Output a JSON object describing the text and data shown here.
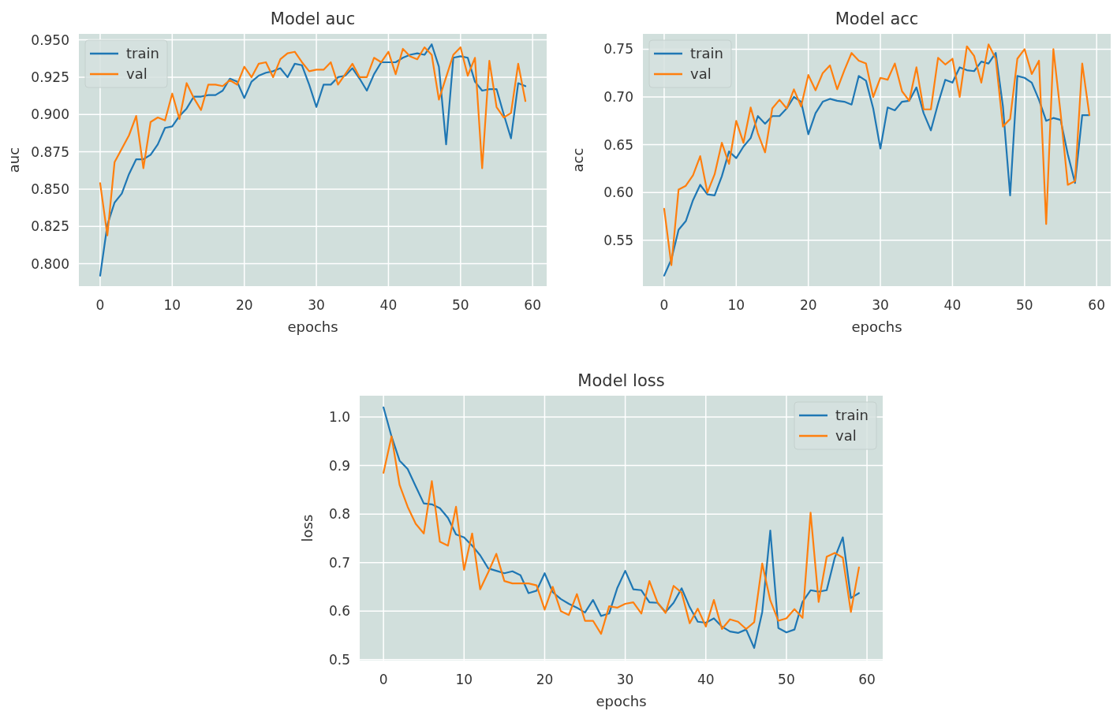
{
  "chart_data": [
    {
      "type": "line",
      "title": "Model auc",
      "xlabel": "epochs",
      "ylabel": "auc",
      "x": [
        0,
        1,
        2,
        3,
        4,
        5,
        6,
        7,
        8,
        9,
        10,
        11,
        12,
        13,
        14,
        15,
        16,
        17,
        18,
        19,
        20,
        21,
        22,
        23,
        24,
        25,
        26,
        27,
        28,
        29,
        30,
        31,
        32,
        33,
        34,
        35,
        36,
        37,
        38,
        39,
        40,
        41,
        42,
        43,
        44,
        45,
        46,
        47,
        48,
        49,
        50,
        51,
        52,
        53,
        54,
        55,
        56,
        57,
        58,
        59
      ],
      "xlim": [
        -2.95,
        61.95
      ],
      "xticks": [
        0,
        10,
        20,
        30,
        40,
        50,
        60
      ],
      "ylim": [
        0.785,
        0.954
      ],
      "yticks": [
        {
          "value": 0.8,
          "label": "0.800"
        },
        {
          "value": 0.825,
          "label": "0.825"
        },
        {
          "value": 0.85,
          "label": "0.850"
        },
        {
          "value": 0.875,
          "label": "0.875"
        },
        {
          "value": 0.9,
          "label": "0.900"
        },
        {
          "value": 0.925,
          "label": "0.925"
        },
        {
          "value": 0.95,
          "label": "0.950"
        }
      ],
      "grid": true,
      "legend": "top left",
      "line_style": "solid",
      "series": [
        {
          "name": "train",
          "color": "#1f77b4",
          "values": [
            0.792,
            0.826,
            0.841,
            0.847,
            0.86,
            0.87,
            0.87,
            0.873,
            0.88,
            0.891,
            0.892,
            0.899,
            0.904,
            0.912,
            0.912,
            0.913,
            0.913,
            0.916,
            0.924,
            0.922,
            0.911,
            0.922,
            0.926,
            0.928,
            0.929,
            0.931,
            0.925,
            0.934,
            0.933,
            0.92,
            0.905,
            0.92,
            0.92,
            0.925,
            0.926,
            0.931,
            0.924,
            0.916,
            0.927,
            0.935,
            0.935,
            0.935,
            0.938,
            0.94,
            0.941,
            0.94,
            0.947,
            0.932,
            0.88,
            0.938,
            0.939,
            0.938,
            0.922,
            0.916,
            0.917,
            0.917,
            0.9,
            0.884,
            0.921,
            0.919
          ]
        },
        {
          "name": "val",
          "color": "#ff7f0e",
          "values": [
            0.854,
            0.819,
            0.868,
            0.877,
            0.886,
            0.899,
            0.864,
            0.895,
            0.898,
            0.896,
            0.914,
            0.897,
            0.921,
            0.911,
            0.903,
            0.92,
            0.92,
            0.919,
            0.923,
            0.92,
            0.932,
            0.925,
            0.934,
            0.935,
            0.925,
            0.937,
            0.941,
            0.942,
            0.935,
            0.929,
            0.93,
            0.93,
            0.935,
            0.92,
            0.927,
            0.934,
            0.925,
            0.925,
            0.938,
            0.935,
            0.942,
            0.927,
            0.944,
            0.939,
            0.937,
            0.945,
            0.94,
            0.91,
            0.925,
            0.94,
            0.945,
            0.926,
            0.938,
            0.864,
            0.936,
            0.905,
            0.898,
            0.901,
            0.934,
            0.909
          ]
        }
      ]
    },
    {
      "type": "line",
      "title": "Model acc",
      "xlabel": "epochs",
      "ylabel": "acc",
      "x": [
        0,
        1,
        2,
        3,
        4,
        5,
        6,
        7,
        8,
        9,
        10,
        11,
        12,
        13,
        14,
        15,
        16,
        17,
        18,
        19,
        20,
        21,
        22,
        23,
        24,
        25,
        26,
        27,
        28,
        29,
        30,
        31,
        32,
        33,
        34,
        35,
        36,
        37,
        38,
        39,
        40,
        41,
        42,
        43,
        44,
        45,
        46,
        47,
        48,
        49,
        50,
        51,
        52,
        53,
        54,
        55,
        56,
        57,
        58,
        59
      ],
      "xlim": [
        -2.95,
        61.95
      ],
      "xticks": [
        0,
        10,
        20,
        30,
        40,
        50,
        60
      ],
      "ylim": [
        0.502,
        0.766
      ],
      "yticks": [
        {
          "value": 0.55,
          "label": "0.55"
        },
        {
          "value": 0.6,
          "label": "0.60"
        },
        {
          "value": 0.65,
          "label": "0.65"
        },
        {
          "value": 0.7,
          "label": "0.70"
        },
        {
          "value": 0.75,
          "label": "0.75"
        }
      ],
      "grid": true,
      "legend": "top left",
      "line_style": "solid",
      "series": [
        {
          "name": "train",
          "color": "#1f77b4",
          "values": [
            0.513,
            0.53,
            0.561,
            0.57,
            0.592,
            0.608,
            0.598,
            0.597,
            0.617,
            0.643,
            0.636,
            0.648,
            0.657,
            0.68,
            0.672,
            0.68,
            0.68,
            0.688,
            0.7,
            0.695,
            0.661,
            0.683,
            0.695,
            0.698,
            0.696,
            0.695,
            0.692,
            0.722,
            0.717,
            0.688,
            0.646,
            0.689,
            0.686,
            0.695,
            0.696,
            0.71,
            0.683,
            0.665,
            0.693,
            0.718,
            0.715,
            0.731,
            0.728,
            0.727,
            0.737,
            0.735,
            0.746,
            0.69,
            0.597,
            0.722,
            0.72,
            0.715,
            0.697,
            0.675,
            0.678,
            0.676,
            0.64,
            0.61,
            0.681,
            0.681
          ]
        },
        {
          "name": "val",
          "color": "#ff7f0e",
          "values": [
            0.583,
            0.524,
            0.603,
            0.607,
            0.618,
            0.638,
            0.6,
            0.619,
            0.652,
            0.63,
            0.675,
            0.652,
            0.689,
            0.662,
            0.642,
            0.688,
            0.697,
            0.688,
            0.708,
            0.69,
            0.723,
            0.707,
            0.725,
            0.733,
            0.708,
            0.728,
            0.746,
            0.738,
            0.735,
            0.7,
            0.72,
            0.718,
            0.735,
            0.706,
            0.696,
            0.731,
            0.687,
            0.687,
            0.741,
            0.734,
            0.74,
            0.7,
            0.753,
            0.743,
            0.715,
            0.755,
            0.74,
            0.669,
            0.677,
            0.74,
            0.75,
            0.724,
            0.738,
            0.567,
            0.75,
            0.683,
            0.608,
            0.612,
            0.735,
            0.681
          ]
        }
      ]
    },
    {
      "type": "line",
      "title": "Model loss",
      "xlabel": "epochs",
      "ylabel": "loss",
      "x": [
        0,
        1,
        2,
        3,
        4,
        5,
        6,
        7,
        8,
        9,
        10,
        11,
        12,
        13,
        14,
        15,
        16,
        17,
        18,
        19,
        20,
        21,
        22,
        23,
        24,
        25,
        26,
        27,
        28,
        29,
        30,
        31,
        32,
        33,
        34,
        35,
        36,
        37,
        38,
        39,
        40,
        41,
        42,
        43,
        44,
        45,
        46,
        47,
        48,
        49,
        50,
        51,
        52,
        53,
        54,
        55,
        56,
        57,
        58,
        59
      ],
      "xlim": [
        -2.95,
        61.95
      ],
      "xticks": [
        0,
        10,
        20,
        30,
        40,
        50,
        60
      ],
      "ylim": [
        0.498,
        1.044
      ],
      "yticks": [
        {
          "value": 0.5,
          "label": "0.5"
        },
        {
          "value": 0.6,
          "label": "0.6"
        },
        {
          "value": 0.7,
          "label": "0.7"
        },
        {
          "value": 0.8,
          "label": "0.8"
        },
        {
          "value": 0.9,
          "label": "0.9"
        },
        {
          "value": 1.0,
          "label": "1.0"
        }
      ],
      "grid": true,
      "legend": "top right",
      "line_style": "solid",
      "series": [
        {
          "name": "train",
          "color": "#1f77b4",
          "values": [
            1.02,
            0.96,
            0.91,
            0.893,
            0.857,
            0.822,
            0.82,
            0.812,
            0.792,
            0.758,
            0.752,
            0.735,
            0.715,
            0.688,
            0.683,
            0.678,
            0.682,
            0.674,
            0.637,
            0.642,
            0.678,
            0.639,
            0.625,
            0.615,
            0.607,
            0.597,
            0.623,
            0.59,
            0.595,
            0.647,
            0.683,
            0.645,
            0.643,
            0.618,
            0.617,
            0.598,
            0.617,
            0.647,
            0.608,
            0.578,
            0.576,
            0.585,
            0.568,
            0.558,
            0.555,
            0.562,
            0.524,
            0.598,
            0.766,
            0.565,
            0.556,
            0.562,
            0.619,
            0.643,
            0.64,
            0.643,
            0.71,
            0.752,
            0.627,
            0.637
          ]
        },
        {
          "name": "val",
          "color": "#ff7f0e",
          "values": [
            0.885,
            0.96,
            0.86,
            0.815,
            0.78,
            0.76,
            0.868,
            0.743,
            0.735,
            0.815,
            0.685,
            0.76,
            0.645,
            0.68,
            0.718,
            0.662,
            0.657,
            0.657,
            0.657,
            0.653,
            0.603,
            0.65,
            0.6,
            0.592,
            0.635,
            0.58,
            0.58,
            0.553,
            0.61,
            0.607,
            0.615,
            0.618,
            0.595,
            0.662,
            0.618,
            0.596,
            0.652,
            0.638,
            0.575,
            0.605,
            0.568,
            0.623,
            0.563,
            0.583,
            0.578,
            0.563,
            0.577,
            0.698,
            0.622,
            0.58,
            0.585,
            0.604,
            0.586,
            0.803,
            0.619,
            0.712,
            0.72,
            0.71,
            0.598,
            0.69
          ]
        }
      ]
    }
  ]
}
